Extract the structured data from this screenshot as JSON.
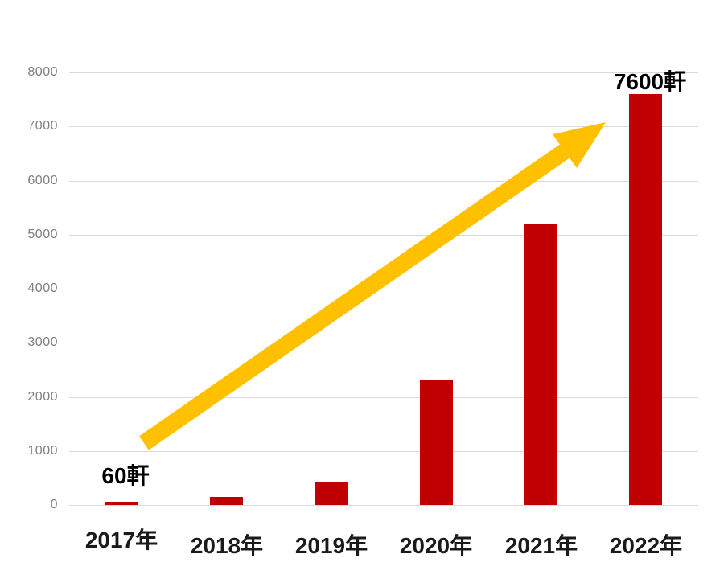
{
  "page": {
    "background": "#FFFFFF"
  },
  "colors": {
    "bar": "#C00000",
    "arrow": "#FFC000",
    "axis_tick_label": "#7F7F7F",
    "gridline": "#D9D9D9",
    "category_label": "#1A1A1A",
    "annotation_label": "#000000"
  },
  "chart_data": {
    "type": "bar",
    "title": "",
    "xlabel": "",
    "ylabel": "",
    "categories": [
      "2017年",
      "2018年",
      "2019年",
      "2020年",
      "2021年",
      "2022年"
    ],
    "values": [
      60,
      150,
      430,
      2300,
      5200,
      7600
    ],
    "annotations": [
      {
        "text": "60軒",
        "category_index": 0
      },
      {
        "text": "7600軒",
        "category_index": 5
      }
    ],
    "ylim": [
      0,
      8000
    ],
    "ytick_step": 1000,
    "ytick_labels": [
      "0",
      "1000",
      "2000",
      "3000",
      "4000",
      "5000",
      "6000",
      "7000",
      "8000"
    ],
    "grid": "horizontal",
    "legend": "none",
    "trend_arrow": {
      "present": true,
      "direction": "up-right",
      "from": "above 2017 bar (~1100 level)",
      "to": "just left of 2022 bar (~7000 level)"
    }
  }
}
